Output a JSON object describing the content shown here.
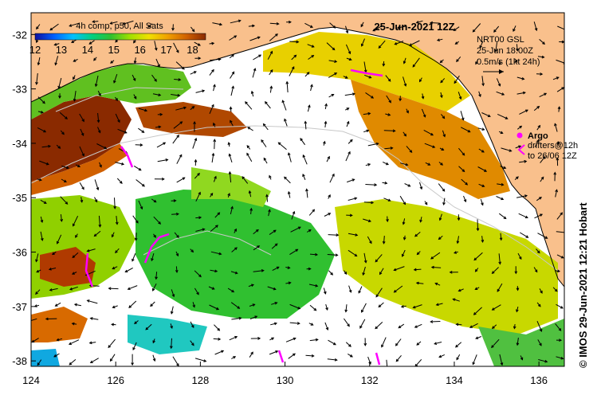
{
  "map": {
    "date_label": "25-Jun-2021 12Z",
    "credit": "© IMOS 29-Jun-2021 12:21 Hobart",
    "colors": {
      "land": "#f9c08c",
      "ocean_no_data": "#ffffff",
      "coast_line": "#000000",
      "contour": "#c8c8c8",
      "argo": "#ff00ff",
      "arrows": "#000000"
    }
  },
  "sst_colorbar": {
    "title": "4h comp, p50, All Sats",
    "ticks": [
      "12",
      "13",
      "14",
      "15",
      "16",
      "17",
      "18"
    ],
    "min": 12,
    "max": 18.5,
    "gradient": [
      "#1010a0",
      "#0060ff",
      "#00c0ff",
      "#00d080",
      "#30c030",
      "#a0e000",
      "#f0e000",
      "#f0a000",
      "#d06000",
      "#8a2a00"
    ]
  },
  "current_legend": {
    "line1": "NRT00 GSL",
    "line2": "25-Jun 18:00Z",
    "line3": "0.5m/s (1kt 24h)"
  },
  "argo_legend": {
    "argo_label": "Argo",
    "drifter_line1": "drifters@12h",
    "drifter_line2": "to 26/06 12Z"
  },
  "axes": {
    "x_ticks": [
      "124",
      "126",
      "128",
      "130",
      "132",
      "134",
      "136"
    ],
    "y_ticks": [
      "-32",
      "-33",
      "-34",
      "-35",
      "-36",
      "-37",
      "-38"
    ],
    "x_range": [
      124,
      136.6
    ],
    "y_range": [
      -31.6,
      -38.1
    ]
  }
}
